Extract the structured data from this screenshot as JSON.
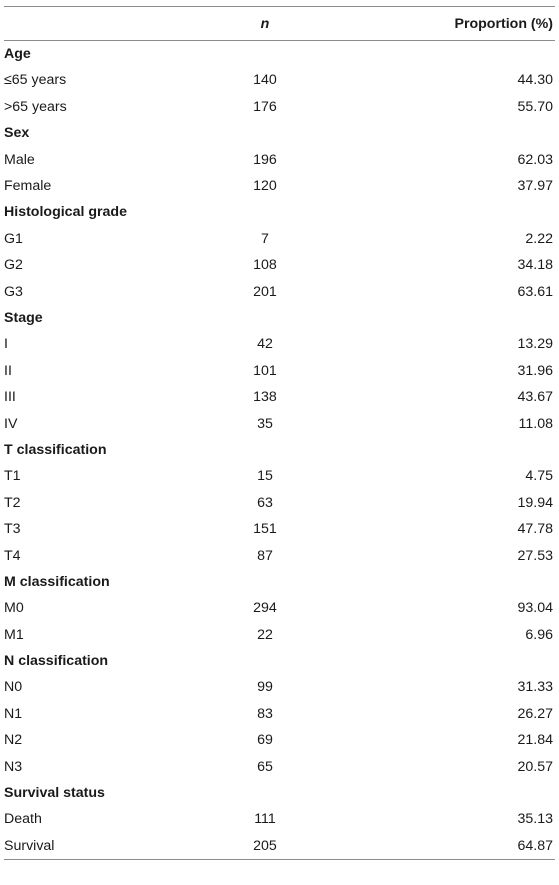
{
  "header": {
    "col_label": "",
    "col_n": "n",
    "col_proportion": "Proportion (%)"
  },
  "groups": [
    {
      "title": "Age",
      "rows": [
        {
          "label": "≤65 years",
          "n": "140",
          "p": "44.30"
        },
        {
          "label": ">65 years",
          "n": "176",
          "p": "55.70"
        }
      ]
    },
    {
      "title": "Sex",
      "rows": [
        {
          "label": "Male",
          "n": "196",
          "p": "62.03"
        },
        {
          "label": "Female",
          "n": "120",
          "p": "37.97"
        }
      ]
    },
    {
      "title": "Histological grade",
      "rows": [
        {
          "label": "G1",
          "n": "7",
          "p": "2.22"
        },
        {
          "label": "G2",
          "n": "108",
          "p": "34.18"
        },
        {
          "label": "G3",
          "n": "201",
          "p": "63.61"
        }
      ]
    },
    {
      "title": "Stage",
      "rows": [
        {
          "label": "I",
          "n": "42",
          "p": "13.29"
        },
        {
          "label": "II",
          "n": "101",
          "p": "31.96"
        },
        {
          "label": "III",
          "n": "138",
          "p": "43.67"
        },
        {
          "label": "IV",
          "n": "35",
          "p": "11.08"
        }
      ]
    },
    {
      "title": "T classification",
      "rows": [
        {
          "label": "T1",
          "n": "15",
          "p": "4.75"
        },
        {
          "label": "T2",
          "n": "63",
          "p": "19.94"
        },
        {
          "label": "T3",
          "n": "151",
          "p": "47.78"
        },
        {
          "label": "T4",
          "n": "87",
          "p": "27.53"
        }
      ]
    },
    {
      "title": "M classification",
      "rows": [
        {
          "label": "M0",
          "n": "294",
          "p": "93.04"
        },
        {
          "label": "M1",
          "n": "22",
          "p": "6.96"
        }
      ]
    },
    {
      "title": "N classification",
      "rows": [
        {
          "label": "N0",
          "n": "99",
          "p": "31.33"
        },
        {
          "label": "N1",
          "n": "83",
          "p": "26.27"
        },
        {
          "label": "N2",
          "n": "69",
          "p": "21.84"
        },
        {
          "label": "N3",
          "n": "65",
          "p": "20.57"
        }
      ]
    },
    {
      "title": "Survival status",
      "rows": [
        {
          "label": "Death",
          "n": "111",
          "p": "35.13"
        },
        {
          "label": "Survival",
          "n": "205",
          "p": "64.87"
        }
      ]
    }
  ]
}
